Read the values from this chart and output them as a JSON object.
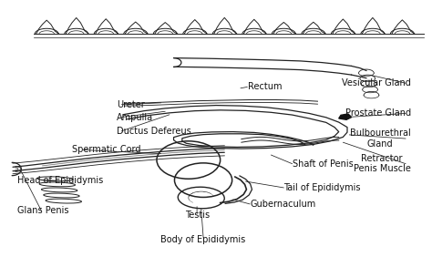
{
  "bg_color": "#ffffff",
  "fig_bg": "#ffffff",
  "lc": "#222222",
  "lw": 0.9,
  "labels": {
    "Rectum": [
      0.575,
      0.665,
      "left",
      7.0
    ],
    "Vesicular Gland": [
      0.96,
      0.68,
      "right",
      7.0
    ],
    "Ureter": [
      0.265,
      0.595,
      "left",
      7.0
    ],
    "Ampulla": [
      0.265,
      0.545,
      "left",
      7.0
    ],
    "Ductus Defereus": [
      0.265,
      0.49,
      "left",
      7.0
    ],
    "Prostate Gland": [
      0.96,
      0.56,
      "right",
      7.0
    ],
    "Bulbourethral\nGland": [
      0.96,
      0.46,
      "right",
      7.0
    ],
    "Retractor\nPenis Muscle": [
      0.96,
      0.36,
      "right",
      7.0
    ],
    "Spermatic Cord": [
      0.16,
      0.415,
      "left",
      7.0
    ],
    "Shaft of Penis": [
      0.68,
      0.36,
      "left",
      7.0
    ],
    "Head of Epididymis": [
      0.03,
      0.295,
      "left",
      7.0
    ],
    "Tail of Epididymis": [
      0.66,
      0.265,
      "left",
      7.0
    ],
    "Glans Penis": [
      0.03,
      0.175,
      "left",
      7.0
    ],
    "Testis": [
      0.455,
      0.155,
      "center",
      7.0
    ],
    "Gubernaculum": [
      0.58,
      0.2,
      "left",
      7.0
    ],
    "Body of Epididymis": [
      0.47,
      0.06,
      "center",
      7.0
    ]
  }
}
